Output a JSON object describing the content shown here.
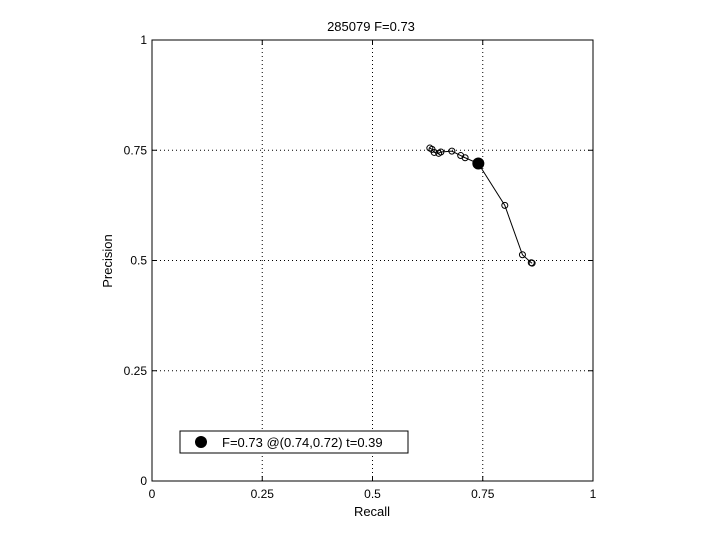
{
  "chart_data": {
    "type": "line",
    "title": "285079 F=0.73",
    "xlabel": "Recall",
    "ylabel": "Precision",
    "xlim": [
      0,
      1
    ],
    "ylim": [
      0,
      1
    ],
    "xticks": [
      0,
      0.25,
      0.5,
      0.75,
      1
    ],
    "yticks": [
      0,
      0.25,
      0.5,
      0.75,
      1
    ],
    "xtick_labels": [
      "0",
      "0.25",
      "0.5",
      "0.75",
      "1"
    ],
    "ytick_labels": [
      "0",
      "0.25",
      "0.5",
      "0.75",
      "1"
    ],
    "grid": true,
    "legend_position": "bottom-left",
    "series": [
      {
        "x": [
          0.63,
          0.635,
          0.64,
          0.65,
          0.655,
          0.68,
          0.7,
          0.71,
          0.74,
          0.8,
          0.84,
          0.86,
          0.862
        ],
        "y": [
          0.755,
          0.752,
          0.745,
          0.743,
          0.746,
          0.748,
          0.738,
          0.733,
          0.72,
          0.625,
          0.513,
          0.495,
          0.494
        ],
        "marker": "open-circle",
        "color": "#000000"
      }
    ],
    "best_point": {
      "x": 0.74,
      "y": 0.72,
      "marker": "filled-circle",
      "color": "#000000"
    },
    "legend_label": "F=0.73 @(0.74,0.72) t=0.39"
  }
}
